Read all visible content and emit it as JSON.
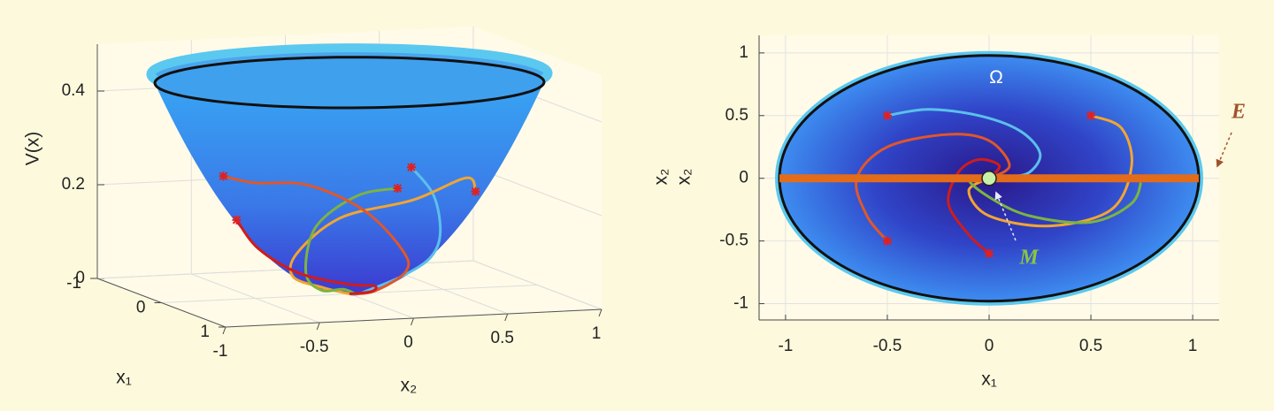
{
  "chart_data": [
    {
      "type": "surface3d",
      "zlabel": "V(x)",
      "xlabel": "x₁",
      "ylabel": "x₂",
      "xlim": [
        -1,
        1
      ],
      "ylim": [
        -1,
        1
      ],
      "zlim": [
        0,
        0.5
      ],
      "xticks": [
        -1,
        0,
        1
      ],
      "yticks": [
        -1,
        -0.5,
        0,
        0.5,
        1
      ],
      "zticks": [
        0,
        0.2,
        0.4
      ],
      "rim_level": 0.47,
      "grid": true
    },
    {
      "type": "phase",
      "xlabel": "x₁",
      "ylabel": "x₂",
      "xlim": [
        -1.13,
        1.13
      ],
      "ylim": [
        -1.13,
        1.14
      ],
      "xticks": [
        -1,
        -0.5,
        0,
        0.5,
        1
      ],
      "yticks": [
        -1,
        -0.5,
        0,
        0.5,
        1
      ],
      "grid": true,
      "region": {
        "label": "Ω",
        "rx": 1.03,
        "ry": 0.98
      },
      "equilibria": {
        "label": "E",
        "x": [
          -1.03,
          1.03
        ],
        "y": 0,
        "color": "#e36c1a"
      },
      "point": {
        "label": "M",
        "x": 0,
        "y": 0,
        "color": "#8cc63f"
      },
      "series": [
        {
          "color": "#5bc0eb",
          "x": [
            -0.5,
            -0.3,
            -0.05,
            0.15,
            0.25,
            0.2,
            0.1,
            0.02
          ],
          "values": [
            0.5,
            0.55,
            0.5,
            0.38,
            0.2,
            0.05,
            0.01,
            0
          ]
        },
        {
          "color": "#f2a531",
          "x": [
            0.5,
            0.65,
            0.7,
            0.6,
            0.3,
            0,
            -0.1,
            0
          ],
          "values": [
            0.5,
            0.4,
            0.1,
            -0.25,
            -0.38,
            -0.3,
            -0.1,
            0
          ]
        },
        {
          "color": "#7cb342",
          "x": [
            0.75,
            0.7,
            0.5,
            0.2,
            0,
            -0.1,
            0.05
          ],
          "values": [
            0,
            -0.2,
            -0.35,
            -0.3,
            -0.15,
            0,
            0.02
          ]
        },
        {
          "color": "#e0572a",
          "x": [
            -0.5,
            -0.6,
            -0.65,
            -0.5,
            -0.2,
            0,
            0.1,
            0
          ],
          "values": [
            -0.5,
            -0.3,
            0,
            0.25,
            0.35,
            0.3,
            0.1,
            0
          ]
        },
        {
          "color": "#d01c1c",
          "x": [
            0,
            -0.1,
            -0.2,
            -0.15,
            -0.05,
            0.05,
            0
          ],
          "values": [
            -0.6,
            -0.45,
            -0.2,
            0.05,
            0.15,
            0.1,
            0
          ]
        }
      ]
    }
  ]
}
